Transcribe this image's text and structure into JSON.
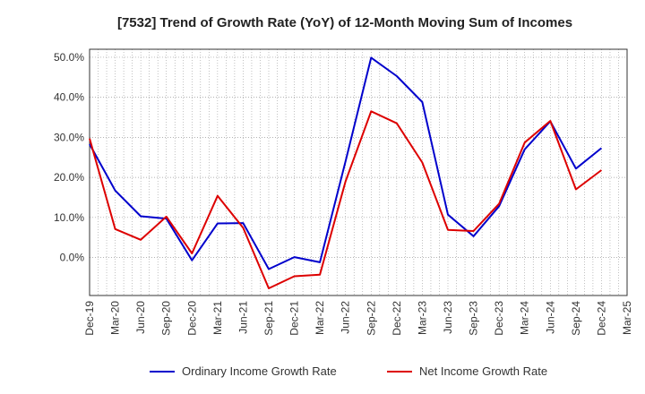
{
  "chart_data": {
    "type": "line",
    "title": "[7532]  Trend of Growth Rate (YoY) of 12-Month Moving Sum of Incomes",
    "xlabel": "",
    "ylabel": "",
    "x": [
      "Dec-19",
      "Mar-20",
      "Jun-20",
      "Sep-20",
      "Dec-20",
      "Mar-21",
      "Jun-21",
      "Sep-21",
      "Dec-21",
      "Mar-22",
      "Jun-22",
      "Sep-22",
      "Dec-22",
      "Mar-23",
      "Jun-23",
      "Sep-23",
      "Dec-23",
      "Mar-24",
      "Jun-24",
      "Sep-24",
      "Dec-24",
      "Mar-25"
    ],
    "yticks": [
      "0.0%",
      "10.0%",
      "20.0%",
      "30.0%",
      "40.0%",
      "50.0%"
    ],
    "ylim": [
      -9.5,
      52
    ],
    "grid": true,
    "legend_position": "bottom",
    "series": [
      {
        "name": "Ordinary Income Growth Rate",
        "color": "#0000cc",
        "values": [
          28.3,
          16.7,
          10.3,
          9.7,
          -0.7,
          8.5,
          8.6,
          -2.9,
          0.1,
          -1.2,
          24.0,
          49.9,
          45.3,
          38.8,
          10.7,
          5.3,
          12.8,
          27.0,
          34.0,
          22.2,
          27.3,
          null
        ]
      },
      {
        "name": "Net Income Growth Rate",
        "color": "#dd0000",
        "values": [
          29.7,
          7.1,
          4.4,
          10.2,
          1.0,
          15.4,
          7.4,
          -7.7,
          -4.7,
          -4.3,
          19.0,
          36.5,
          33.5,
          23.7,
          6.9,
          6.6,
          13.4,
          28.7,
          34.1,
          17.0,
          21.8,
          null
        ]
      }
    ]
  }
}
